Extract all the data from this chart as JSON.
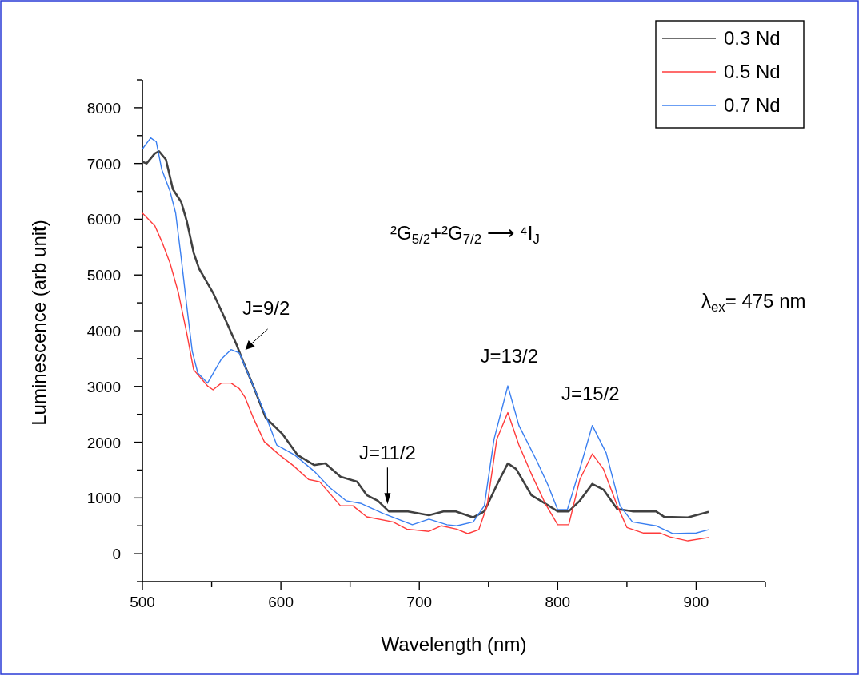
{
  "chart_data": {
    "type": "line",
    "xlabel": "Wavelength (nm)",
    "ylabel": "Luminescence (arb unit)",
    "xlim": [
      500,
      950
    ],
    "ylim": [
      -500,
      8500
    ],
    "xticks": [
      500,
      {
        "value": 550,
        "label": null
      },
      600,
      {
        "value": 650,
        "label": null
      },
      700,
      {
        "value": 750,
        "label": null
      },
      800,
      {
        "value": 850,
        "label": null
      },
      900,
      {
        "value": 950,
        "label": null
      }
    ],
    "yticks": [
      {
        "value": -500,
        "label": null
      },
      0,
      {
        "value": 500,
        "label": null
      },
      1000,
      {
        "value": 1500,
        "label": null
      },
      2000,
      {
        "value": 2500,
        "label": null
      },
      3000,
      {
        "value": 3500,
        "label": null
      },
      4000,
      {
        "value": 4500,
        "label": null
      },
      5000,
      {
        "value": 5500,
        "label": null
      },
      6000,
      {
        "value": 6500,
        "label": null
      },
      7000,
      {
        "value": 7500,
        "label": null
      },
      8000,
      {
        "value": 8500,
        "label": null
      }
    ],
    "grid": false,
    "legend": "top right",
    "marker": "none",
    "line_style": "solid",
    "series": [
      {
        "name": "0.3 Nd",
        "color": "#404040",
        "x": [
          500,
          503,
          509,
          512,
          517,
          522,
          528,
          532,
          537,
          541,
          551,
          559,
          568,
          572,
          580,
          589,
          601,
          612,
          624,
          632,
          643,
          655,
          662,
          670,
          678,
          691,
          707,
          718,
          726,
          739,
          747,
          756,
          764,
          770,
          781,
          791,
          800,
          808,
          816,
          825,
          833,
          843,
          854,
          871,
          877,
          894,
          909
        ],
        "values": [
          7030,
          7000,
          7180,
          7220,
          7070,
          6540,
          6310,
          5970,
          5400,
          5110,
          4680,
          4250,
          3750,
          3490,
          3010,
          2440,
          2150,
          1770,
          1590,
          1620,
          1380,
          1290,
          1050,
          950,
          760,
          760,
          690,
          760,
          760,
          650,
          760,
          1230,
          1620,
          1520,
          1050,
          900,
          760,
          760,
          950,
          1250,
          1150,
          800,
          760,
          760,
          660,
          650,
          750
        ]
      },
      {
        "name": "0.5 Nd",
        "color": "#ff3b3b",
        "x": [
          500,
          509,
          514,
          520,
          526,
          532,
          537,
          547,
          551,
          557,
          564,
          570,
          574,
          580,
          588,
          599,
          609,
          620,
          628,
          643,
          652,
          662,
          681,
          691,
          707,
          716,
          727,
          735,
          743,
          749,
          756,
          764,
          772,
          781,
          791,
          800,
          808,
          816,
          825,
          833,
          843,
          850,
          862,
          874,
          881,
          894,
          909
        ],
        "values": [
          6110,
          5880,
          5600,
          5210,
          4680,
          3960,
          3300,
          3010,
          2940,
          3060,
          3060,
          2960,
          2810,
          2440,
          2010,
          1770,
          1580,
          1330,
          1290,
          860,
          860,
          660,
          570,
          440,
          400,
          500,
          440,
          360,
          430,
          860,
          2050,
          2530,
          1950,
          1430,
          900,
          520,
          520,
          1330,
          1790,
          1520,
          860,
          470,
          370,
          370,
          300,
          230,
          290
        ]
      },
      {
        "name": "0.7 Nd",
        "color": "#3a7ff0",
        "x": [
          500,
          506,
          510,
          514,
          520,
          524,
          528,
          532,
          536,
          540,
          547,
          557,
          564,
          570,
          580,
          589,
          597,
          610,
          624,
          635,
          647,
          658,
          674,
          695,
          707,
          720,
          727,
          739,
          747,
          754,
          764,
          772,
          785,
          793,
          800,
          807,
          816,
          825,
          835,
          845,
          854,
          871,
          883,
          900,
          909
        ],
        "values": [
          7260,
          7460,
          7390,
          6890,
          6500,
          6110,
          5310,
          4450,
          3630,
          3240,
          3060,
          3490,
          3660,
          3600,
          3010,
          2480,
          1950,
          1770,
          1480,
          1190,
          950,
          900,
          720,
          520,
          620,
          520,
          500,
          570,
          860,
          2050,
          3010,
          2300,
          1660,
          1230,
          790,
          790,
          1520,
          2300,
          1810,
          860,
          570,
          500,
          360,
          370,
          430
        ]
      }
    ],
    "annotations": [
      {
        "text": "J=9/2",
        "x": 572,
        "y": 3600
      },
      {
        "text": "J=11/2",
        "x": 677,
        "y": 800
      },
      {
        "text": "J=13/2",
        "x": 765,
        "y": 3000
      },
      {
        "text": "J=15/2",
        "x": 826,
        "y": 2300
      },
      "²G$_{5/2}$+²G$_{7/2}$ ⟶ ⁴I$_{J}$",
      "λ$_{ex}$= 475 nm"
    ]
  }
}
